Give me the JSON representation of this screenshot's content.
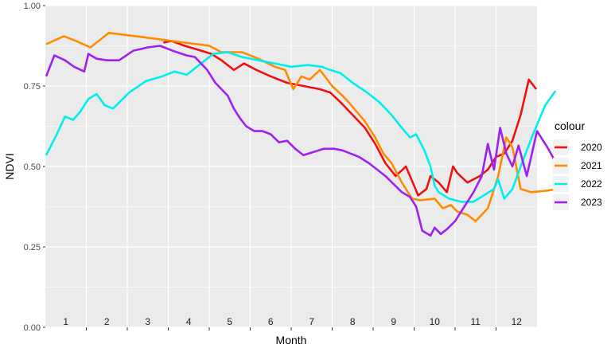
{
  "chart_data": {
    "type": "line",
    "xlabel": "Month",
    "ylabel": "NDVI",
    "x_domain": [
      0.5,
      12.5
    ],
    "ylim": [
      0,
      1
    ],
    "y_ticks": [
      {
        "value": 0.0,
        "label": "0.00"
      },
      {
        "value": 0.25,
        "label": "0.25"
      },
      {
        "value": 0.5,
        "label": "0.50"
      },
      {
        "value": 0.75,
        "label": "0.75"
      },
      {
        "value": 1.0,
        "label": "1.00"
      }
    ],
    "month_labels": [
      "1",
      "2",
      "3",
      "4",
      "5",
      "6",
      "7",
      "8",
      "9",
      "10",
      "11",
      "12"
    ],
    "grid": true,
    "legend_title": "colour",
    "legend_position": "right",
    "series": [
      {
        "name": "2020",
        "color": "#ee1111",
        "points": [
          [
            3.38,
            0.885
          ],
          [
            3.58,
            0.89
          ],
          [
            3.9,
            0.875
          ],
          [
            4.3,
            0.86
          ],
          [
            4.55,
            0.85
          ],
          [
            4.8,
            0.83
          ],
          [
            5.1,
            0.8
          ],
          [
            5.35,
            0.82
          ],
          [
            5.65,
            0.8
          ],
          [
            6.0,
            0.78
          ],
          [
            6.4,
            0.76
          ],
          [
            6.8,
            0.75
          ],
          [
            7.2,
            0.74
          ],
          [
            7.45,
            0.73
          ],
          [
            7.7,
            0.7
          ],
          [
            8.0,
            0.66
          ],
          [
            8.3,
            0.62
          ],
          [
            8.55,
            0.57
          ],
          [
            8.8,
            0.51
          ],
          [
            9.05,
            0.47
          ],
          [
            9.3,
            0.5
          ],
          [
            9.5,
            0.44
          ],
          [
            9.6,
            0.41
          ],
          [
            9.8,
            0.43
          ],
          [
            9.9,
            0.47
          ],
          [
            10.1,
            0.45
          ],
          [
            10.3,
            0.42
          ],
          [
            10.45,
            0.5
          ],
          [
            10.55,
            0.48
          ],
          [
            10.8,
            0.45
          ],
          [
            11.1,
            0.47
          ],
          [
            11.3,
            0.49
          ],
          [
            11.5,
            0.53
          ],
          [
            11.7,
            0.54
          ],
          [
            11.9,
            0.58
          ],
          [
            12.1,
            0.66
          ],
          [
            12.3,
            0.77
          ],
          [
            12.48,
            0.74
          ]
        ]
      },
      {
        "name": "2021",
        "color": "#ff8c00",
        "points": [
          [
            0.52,
            0.88
          ],
          [
            0.95,
            0.905
          ],
          [
            1.25,
            0.89
          ],
          [
            1.6,
            0.87
          ],
          [
            2.05,
            0.915
          ],
          [
            2.7,
            0.905
          ],
          [
            3.3,
            0.895
          ],
          [
            3.9,
            0.885
          ],
          [
            4.5,
            0.875
          ],
          [
            4.8,
            0.855
          ],
          [
            5.3,
            0.855
          ],
          [
            5.7,
            0.835
          ],
          [
            6.1,
            0.81
          ],
          [
            6.35,
            0.8
          ],
          [
            6.55,
            0.74
          ],
          [
            6.75,
            0.78
          ],
          [
            6.95,
            0.77
          ],
          [
            7.2,
            0.8
          ],
          [
            7.5,
            0.75
          ],
          [
            7.75,
            0.72
          ],
          [
            7.9,
            0.7
          ],
          [
            8.1,
            0.67
          ],
          [
            8.3,
            0.64
          ],
          [
            8.55,
            0.59
          ],
          [
            8.75,
            0.54
          ],
          [
            8.95,
            0.51
          ],
          [
            9.2,
            0.45
          ],
          [
            9.45,
            0.4
          ],
          [
            9.65,
            0.395
          ],
          [
            10.0,
            0.4
          ],
          [
            10.2,
            0.37
          ],
          [
            10.4,
            0.38
          ],
          [
            10.55,
            0.36
          ],
          [
            10.8,
            0.35
          ],
          [
            11.0,
            0.33
          ],
          [
            11.3,
            0.37
          ],
          [
            11.55,
            0.47
          ],
          [
            11.75,
            0.59
          ],
          [
            11.9,
            0.56
          ],
          [
            12.1,
            0.43
          ],
          [
            12.35,
            0.42
          ],
          [
            12.75,
            0.425
          ],
          [
            13.0,
            0.43
          ]
        ]
      },
      {
        "name": "2022",
        "color": "#00eeee",
        "points": [
          [
            0.52,
            0.535
          ],
          [
            0.78,
            0.6
          ],
          [
            0.98,
            0.655
          ],
          [
            1.18,
            0.645
          ],
          [
            1.35,
            0.67
          ],
          [
            1.55,
            0.71
          ],
          [
            1.75,
            0.725
          ],
          [
            1.95,
            0.69
          ],
          [
            2.15,
            0.68
          ],
          [
            2.55,
            0.73
          ],
          [
            2.95,
            0.765
          ],
          [
            3.35,
            0.78
          ],
          [
            3.65,
            0.795
          ],
          [
            3.95,
            0.785
          ],
          [
            4.3,
            0.82
          ],
          [
            4.6,
            0.85
          ],
          [
            4.95,
            0.855
          ],
          [
            5.3,
            0.84
          ],
          [
            5.7,
            0.83
          ],
          [
            6.1,
            0.82
          ],
          [
            6.5,
            0.81
          ],
          [
            6.9,
            0.815
          ],
          [
            7.25,
            0.81
          ],
          [
            7.45,
            0.8
          ],
          [
            7.7,
            0.79
          ],
          [
            8.0,
            0.76
          ],
          [
            8.35,
            0.73
          ],
          [
            8.65,
            0.7
          ],
          [
            8.95,
            0.66
          ],
          [
            9.2,
            0.62
          ],
          [
            9.4,
            0.59
          ],
          [
            9.55,
            0.6
          ],
          [
            9.75,
            0.55
          ],
          [
            9.9,
            0.5
          ],
          [
            10.0,
            0.44
          ],
          [
            10.1,
            0.42
          ],
          [
            10.35,
            0.4
          ],
          [
            10.65,
            0.39
          ],
          [
            10.95,
            0.39
          ],
          [
            11.2,
            0.41
          ],
          [
            11.45,
            0.43
          ],
          [
            11.55,
            0.46
          ],
          [
            11.7,
            0.4
          ],
          [
            11.9,
            0.43
          ],
          [
            12.1,
            0.5
          ],
          [
            12.4,
            0.6
          ],
          [
            12.7,
            0.69
          ],
          [
            12.95,
            0.735
          ]
        ]
      },
      {
        "name": "2023",
        "color": "#a020f0",
        "points": [
          [
            0.52,
            0.78
          ],
          [
            0.72,
            0.845
          ],
          [
            0.98,
            0.83
          ],
          [
            1.2,
            0.81
          ],
          [
            1.45,
            0.795
          ],
          [
            1.55,
            0.85
          ],
          [
            1.75,
            0.835
          ],
          [
            2.0,
            0.83
          ],
          [
            2.3,
            0.83
          ],
          [
            2.65,
            0.86
          ],
          [
            3.0,
            0.87
          ],
          [
            3.3,
            0.875
          ],
          [
            3.6,
            0.86
          ],
          [
            3.95,
            0.845
          ],
          [
            4.15,
            0.84
          ],
          [
            4.45,
            0.8
          ],
          [
            4.65,
            0.76
          ],
          [
            4.95,
            0.72
          ],
          [
            5.1,
            0.68
          ],
          [
            5.25,
            0.65
          ],
          [
            5.4,
            0.625
          ],
          [
            5.6,
            0.61
          ],
          [
            5.8,
            0.61
          ],
          [
            6.0,
            0.6
          ],
          [
            6.2,
            0.575
          ],
          [
            6.4,
            0.58
          ],
          [
            6.6,
            0.555
          ],
          [
            6.8,
            0.535
          ],
          [
            7.05,
            0.545
          ],
          [
            7.3,
            0.555
          ],
          [
            7.55,
            0.555
          ],
          [
            7.75,
            0.55
          ],
          [
            7.95,
            0.54
          ],
          [
            8.15,
            0.53
          ],
          [
            8.4,
            0.51
          ],
          [
            8.6,
            0.49
          ],
          [
            8.8,
            0.47
          ],
          [
            9.0,
            0.445
          ],
          [
            9.2,
            0.42
          ],
          [
            9.4,
            0.405
          ],
          [
            9.55,
            0.375
          ],
          [
            9.7,
            0.3
          ],
          [
            9.9,
            0.285
          ],
          [
            10.0,
            0.31
          ],
          [
            10.15,
            0.29
          ],
          [
            10.3,
            0.305
          ],
          [
            10.5,
            0.33
          ],
          [
            10.7,
            0.37
          ],
          [
            10.95,
            0.42
          ],
          [
            11.15,
            0.47
          ],
          [
            11.3,
            0.57
          ],
          [
            11.45,
            0.49
          ],
          [
            11.6,
            0.62
          ],
          [
            11.75,
            0.54
          ],
          [
            11.9,
            0.5
          ],
          [
            12.05,
            0.565
          ],
          [
            12.25,
            0.47
          ],
          [
            12.5,
            0.61
          ],
          [
            12.75,
            0.56
          ],
          [
            12.97,
            0.51
          ]
        ]
      }
    ]
  }
}
